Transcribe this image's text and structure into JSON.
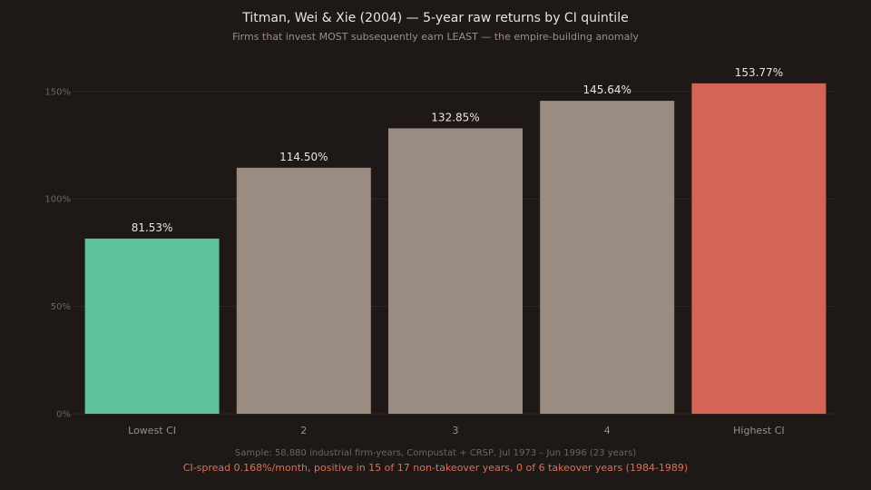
{
  "header": {
    "title": "Titman, Wei & Xie (2004) — 5-year raw returns by CI quintile",
    "subtitle": "Firms that invest MOST subsequently earn LEAST — the empire-building anomaly"
  },
  "footer": {
    "note": "Sample: 58,880 industrial firm-years, Compustat + CRSP, Jul 1973 – Jun 1996 (23 years)",
    "highlight": "CI-spread 0.168%/month, positive in 15 of 17 non-takeover years, 0 of 6 takeover years (1984-1989)"
  },
  "colors": {
    "background": "#1e1916",
    "lowest": "#5bc29a",
    "middle": "#9a8c81",
    "highest": "#d46556",
    "grid": "#2e2824",
    "tick_text": "#6e655e",
    "category_text": "#9a8f85",
    "value_label": "#ece4dc"
  },
  "chart_data": {
    "type": "bar",
    "title": "Titman, Wei & Xie (2004) — 5-year raw returns by CI quintile",
    "subtitle": "Firms that invest MOST subsequently earn LEAST — the empire-building anomaly",
    "categories": [
      "Lowest CI",
      "2",
      "3",
      "4",
      "Highest CI"
    ],
    "values": [
      81.53,
      114.5,
      132.85,
      145.64,
      153.77
    ],
    "value_labels": [
      "81.53%",
      "114.50%",
      "132.85%",
      "145.64%",
      "153.77%"
    ],
    "bar_colors": [
      "#5bc29a",
      "#9a8c81",
      "#9a8c81",
      "#9a8c81",
      "#d46556"
    ],
    "yticks": [
      0,
      50,
      100,
      150
    ],
    "ytick_labels": [
      "0%",
      "50%",
      "100%",
      "150%"
    ],
    "ylim": [
      0,
      163
    ],
    "xlabel": "",
    "ylabel": "",
    "grid": true,
    "legend": "none"
  }
}
